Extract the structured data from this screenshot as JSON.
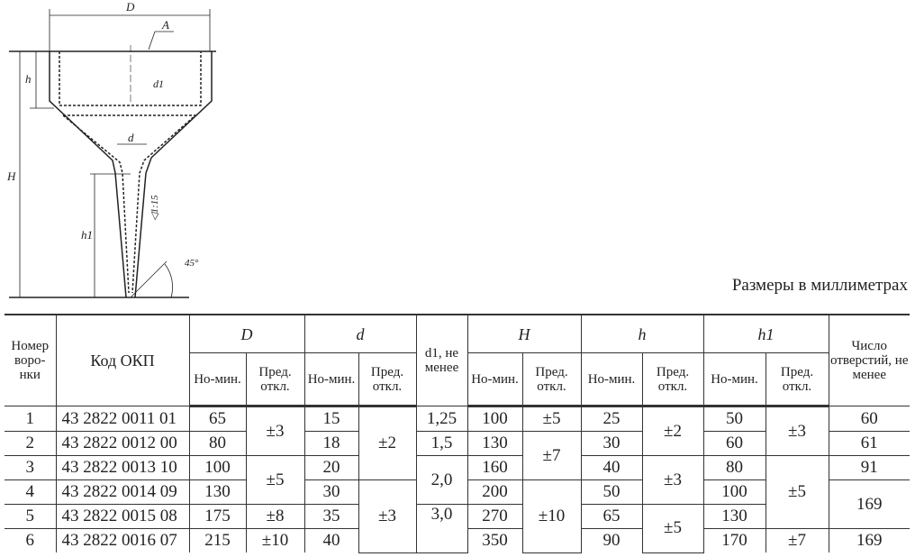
{
  "drawing": {
    "labels": {
      "D": "D",
      "A": "A",
      "h": "h",
      "d1": "d1",
      "d": "d",
      "H": "H",
      "h1": "h1",
      "taper": "◁1:15",
      "angle": "45°"
    }
  },
  "caption": "Размеры в миллиметрах",
  "header": {
    "num": "Номер воро-нки",
    "code": "Код ОКП",
    "D": "D",
    "d": "d",
    "d1": "d1, не менее",
    "H": "H",
    "h": "h",
    "h1": "h1",
    "count": "Число отверстий, не менее",
    "nom": "Но-мин.",
    "tol": "Пред. откл."
  },
  "rows": [
    {
      "num": "1",
      "code": "43 2822 0011 01",
      "D": "65",
      "d": "15",
      "H": "100",
      "h": "25",
      "h1": "50",
      "count": "60"
    },
    {
      "num": "2",
      "code": "43 2822 0012 00",
      "D": "80",
      "d": "18",
      "H": "130",
      "h": "30",
      "h1": "60",
      "count": "61"
    },
    {
      "num": "3",
      "code": "43 2822 0013 10",
      "D": "100",
      "d": "20",
      "H": "160",
      "h": "40",
      "h1": "80",
      "count": "91"
    },
    {
      "num": "4",
      "code": "43 2822 0014 09",
      "D": "130",
      "d": "30",
      "H": "200",
      "h": "50",
      "h1": "100",
      "count": "169"
    },
    {
      "num": "5",
      "code": "43 2822 0015 08",
      "D": "175",
      "d": "35",
      "H": "270",
      "h": "65",
      "h1": "130"
    },
    {
      "num": "6",
      "code": "43 2822 0016 07",
      "D": "215",
      "d": "40",
      "H": "350",
      "h": "90",
      "h1": "170",
      "count": "169"
    }
  ],
  "merged": {
    "D_tol": [
      "±3",
      "±5",
      "±8",
      "±10"
    ],
    "d_tol": [
      "±2",
      "±3"
    ],
    "d1": [
      "1,25",
      "1,5",
      "2,0",
      "3,0"
    ],
    "H_tol": [
      "±5",
      "±7",
      "±10"
    ],
    "h_tol": [
      "±2",
      "±3",
      "±5"
    ],
    "h1_tol": [
      "±3",
      "±5",
      "±7"
    ]
  }
}
